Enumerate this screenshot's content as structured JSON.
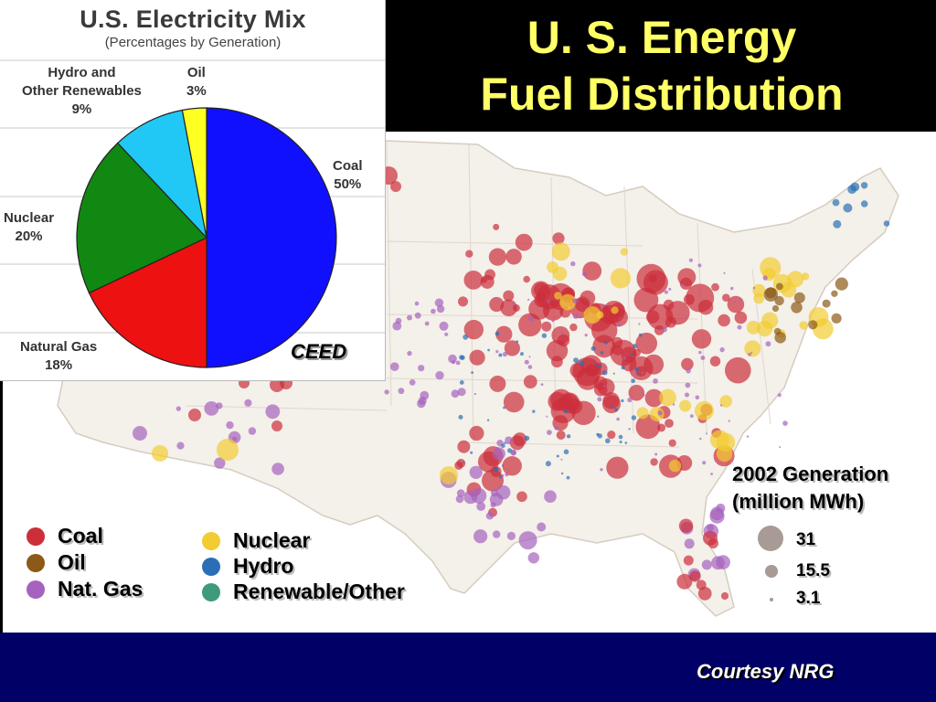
{
  "slide": {
    "title_line1": "U. S. Energy",
    "title_line2": "Fuel Distribution",
    "courtesy": "Courtesy NRG"
  },
  "colors": {
    "background": "#000000",
    "title": "#ffff66",
    "footer": "#000066",
    "coal": "#cc2e3a",
    "oil": "#8b5a16",
    "gas": "#a562be",
    "nuclear": "#f2cc30",
    "hydro": "#2a6fb5",
    "renewable": "#3f9a7c",
    "pie_coal": "#1010ff",
    "pie_gas": "#ee1111",
    "pie_nuclear": "#118811",
    "pie_hydro": "#22c8f5",
    "pie_oil": "#ffff22"
  },
  "chart_data": [
    {
      "type": "pie",
      "title": "U.S. Electricity Mix",
      "subtitle": "(Percentages by Generation)",
      "credit": "CEED",
      "slices": [
        {
          "label_line1": "Coal",
          "label_line2": "50%",
          "value": 50,
          "color": "#1010ff"
        },
        {
          "label_line1": "Natural Gas",
          "label_line2": "18%",
          "value": 18,
          "color": "#ee1111"
        },
        {
          "label_line1": "Nuclear",
          "label_line2": "20%",
          "value": 20,
          "color": "#118811"
        },
        {
          "label_line1": "Hydro and",
          "label_line1b": "Other Renewables",
          "label_line2": "9%",
          "value": 9,
          "color": "#22c8f5"
        },
        {
          "label_line1": "Oil",
          "label_line2": "3%",
          "value": 3,
          "color": "#ffff22"
        }
      ]
    },
    {
      "type": "scatter",
      "title": "2002 Generation",
      "unit_label": "(million MWh)",
      "legend": [
        {
          "label": "Coal",
          "color": "#cc2e3a"
        },
        {
          "label": "Oil",
          "color": "#8b5a16"
        },
        {
          "label": "Nat. Gas",
          "color": "#a562be"
        },
        {
          "label": "Nuclear",
          "color": "#f2cc30"
        },
        {
          "label": "Hydro",
          "color": "#2a6fb5"
        },
        {
          "label": "Renewable/Other",
          "color": "#3f9a7c"
        }
      ],
      "size_legend": [
        {
          "label": "31",
          "value": 31
        },
        {
          "label": "15.5",
          "value": 15.5
        },
        {
          "label": "3.1",
          "value": 3.1
        }
      ]
    }
  ]
}
